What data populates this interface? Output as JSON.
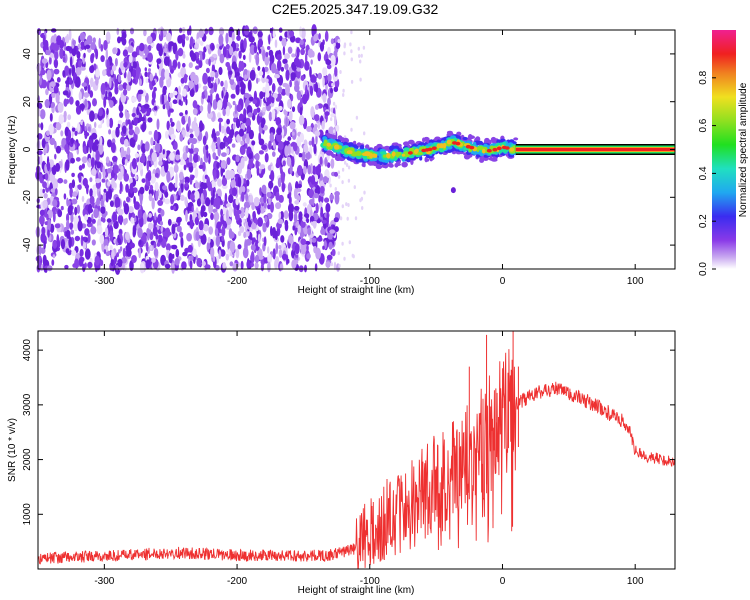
{
  "title": "C2E5.2025.347.19.09.G32",
  "colors": {
    "snr_line": "#ee3030",
    "track_band": "#000000",
    "axis": "#000000"
  },
  "chart_data": [
    {
      "type": "heatmap",
      "name": "spectrogram",
      "xlabel": "Height of straight line (km)",
      "ylabel": "Frequency (Hz)",
      "xlim": [
        -350,
        130
      ],
      "ylim": [
        -50,
        50
      ],
      "xticks": [
        -300,
        -200,
        -100,
        0,
        100
      ],
      "yticks": [
        -40,
        -20,
        0,
        20,
        40
      ],
      "noise_region_end_km": -130,
      "signal_track": {
        "x": [
          -135,
          -125,
          -115,
          -105,
          -95,
          -85,
          -75,
          -65,
          -55,
          -45,
          -38,
          -30,
          -25,
          -20,
          -15,
          -10,
          -5,
          0,
          5,
          10
        ],
        "freq": [
          3,
          1,
          -1,
          -2,
          -3,
          -2.5,
          -2,
          -1,
          0,
          1.5,
          3,
          2,
          1,
          0.5,
          -0.5,
          -0.5,
          0,
          1,
          0.5,
          0
        ]
      },
      "line_band": {
        "x_start": 10,
        "x_end": 130,
        "freq": 0
      },
      "isolated_blob": {
        "x": -37,
        "freq": -17
      },
      "colorbar": {
        "label": "Normalized spectral amplitude",
        "range": [
          0,
          1
        ],
        "ticks": [
          0.0,
          0.2,
          0.4,
          0.6,
          0.8
        ],
        "tick_labels": [
          "0.0",
          "0.2",
          "0.4",
          "0.6",
          "0.8"
        ]
      }
    },
    {
      "type": "line",
      "name": "snr",
      "xlabel": "Height of straight line (km)",
      "ylabel": "SNR (10 * v/v)",
      "xlim": [
        -350,
        130
      ],
      "ylim": [
        0,
        4350
      ],
      "xticks": [
        -300,
        -200,
        -100,
        0,
        100
      ],
      "yticks": [
        1000,
        2000,
        3000,
        4000
      ],
      "series": [
        {
          "name": "SNR",
          "x": [
            -350,
            -300,
            -250,
            -200,
            -150,
            -130,
            -110,
            -100,
            -90,
            -80,
            -70,
            -60,
            -50,
            -40,
            -30,
            -20,
            -10,
            0,
            10,
            20,
            30,
            40,
            50,
            60,
            70,
            80,
            90,
            95,
            100,
            110,
            120,
            130
          ],
          "y": [
            200,
            230,
            300,
            250,
            240,
            250,
            380,
            650,
            900,
            1000,
            1100,
            1400,
            1600,
            1700,
            2000,
            2150,
            2400,
            2700,
            3000,
            3150,
            3250,
            3300,
            3200,
            3100,
            3000,
            2850,
            2700,
            2600,
            2150,
            2050,
            2000,
            1950
          ]
        }
      ],
      "spikes": [
        {
          "x": -12,
          "y": 4280
        },
        {
          "x": -25,
          "y": 3700
        },
        {
          "x": 8,
          "y": 4350
        },
        {
          "x": 12,
          "y": 3700
        },
        {
          "x": -5,
          "y": 3300
        }
      ]
    }
  ]
}
